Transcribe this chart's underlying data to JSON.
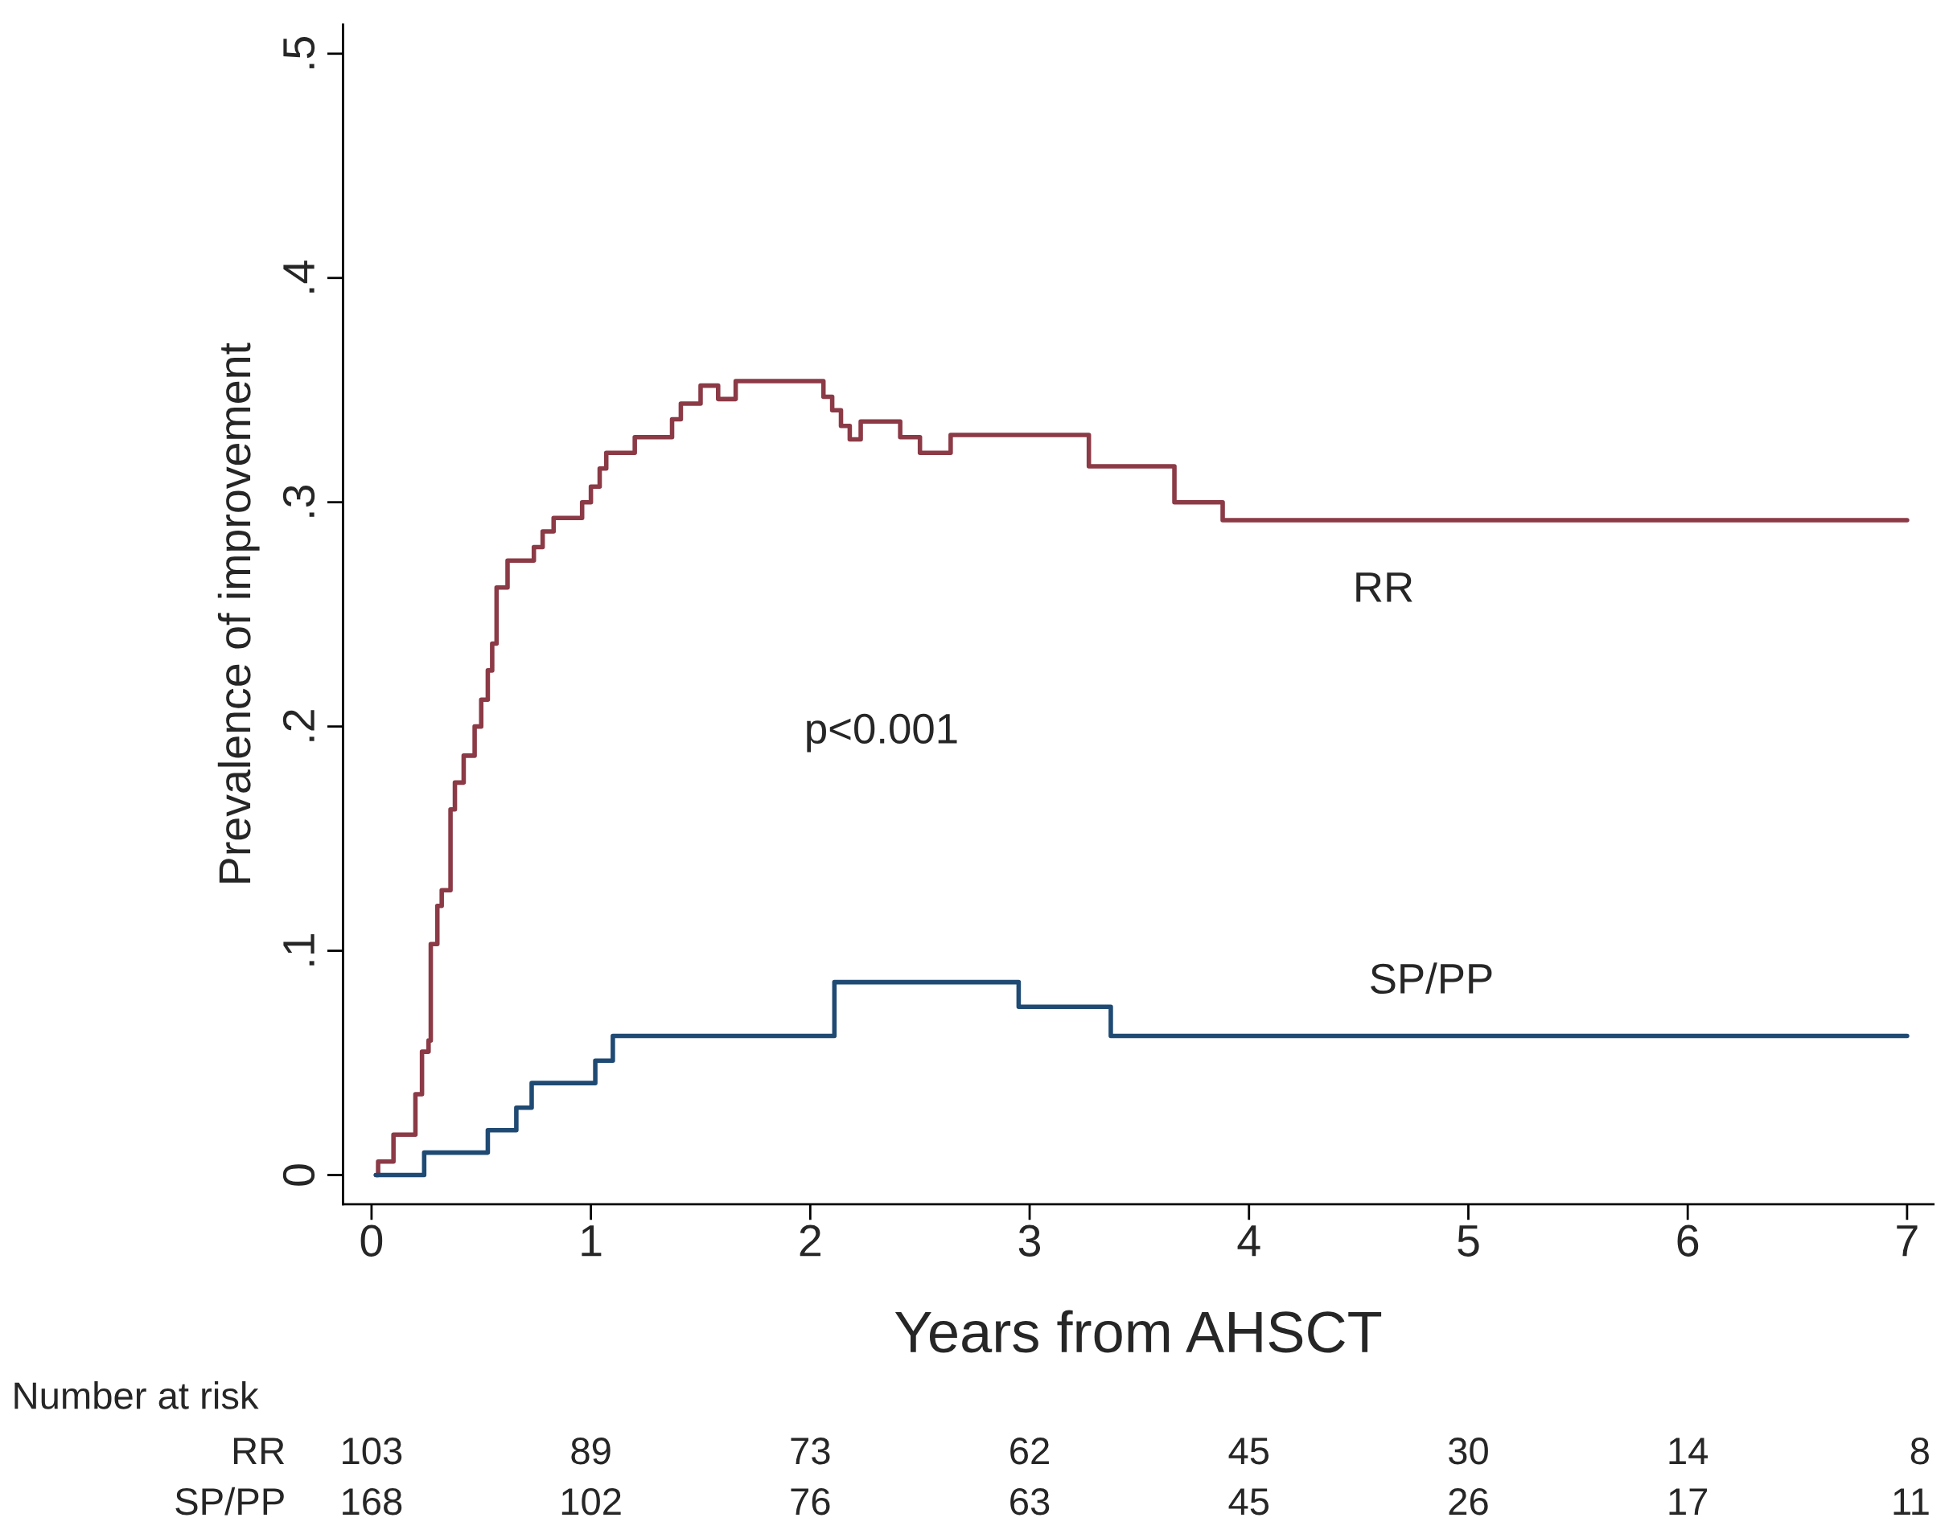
{
  "chart_data": {
    "type": "step",
    "xlabel": "Years from AHSCT",
    "ylabel": "Prevalence of improvement",
    "xlim": [
      -0.13,
      7.12
    ],
    "ylim": [
      -0.013,
      0.513
    ],
    "xticks": [
      0,
      1,
      2,
      3,
      4,
      5,
      6,
      7
    ],
    "yticks": [
      {
        "value": 0,
        "label": "0"
      },
      {
        "value": 0.1,
        "label": ".1"
      },
      {
        "value": 0.2,
        "label": ".2"
      },
      {
        "value": 0.3,
        "label": ".3"
      },
      {
        "value": 0.4,
        "label": ".4"
      },
      {
        "value": 0.5,
        "label": ".5"
      }
    ],
    "grid": false,
    "legend": false,
    "series": [
      {
        "name": "RR",
        "color": "#8b3a46",
        "x": [
          0.02,
          0.03,
          0.1,
          0.2,
          0.23,
          0.26,
          0.27,
          0.3,
          0.32,
          0.36,
          0.38,
          0.42,
          0.47,
          0.5,
          0.53,
          0.55,
          0.57,
          0.62,
          0.74,
          0.78,
          0.83,
          0.96,
          1.0,
          1.04,
          1.07,
          1.2,
          1.37,
          1.41,
          1.5,
          1.58,
          1.66,
          2.06,
          2.1,
          2.14,
          2.18,
          2.23,
          2.41,
          2.5,
          2.64,
          3.27,
          3.66,
          3.88,
          7.0
        ],
        "values": [
          0,
          0.006,
          0.018,
          0.036,
          0.055,
          0.06,
          0.103,
          0.12,
          0.127,
          0.163,
          0.175,
          0.187,
          0.2,
          0.212,
          0.225,
          0.237,
          0.262,
          0.274,
          0.28,
          0.287,
          0.293,
          0.3,
          0.307,
          0.315,
          0.322,
          0.329,
          0.337,
          0.344,
          0.352,
          0.346,
          0.354,
          0.347,
          0.341,
          0.334,
          0.328,
          0.336,
          0.329,
          0.322,
          0.33,
          0.316,
          0.3,
          0.292,
          0.292
        ]
      },
      {
        "name": "SP/PP",
        "color": "#1f4a73",
        "x": [
          0.02,
          0.24,
          0.53,
          0.66,
          0.73,
          1.02,
          1.1,
          2.11,
          2.95,
          3.37,
          7.0
        ],
        "values": [
          0,
          0.01,
          0.02,
          0.03,
          0.041,
          0.051,
          0.062,
          0.086,
          0.075,
          0.062,
          0.062
        ]
      }
    ],
    "annotations": [
      "p<0.001",
      "Number at risk",
      "RR 103 89 73 62 45 30 14 8",
      "SP/PP 168 102 76 63 45 26 17 11"
    ]
  }
}
